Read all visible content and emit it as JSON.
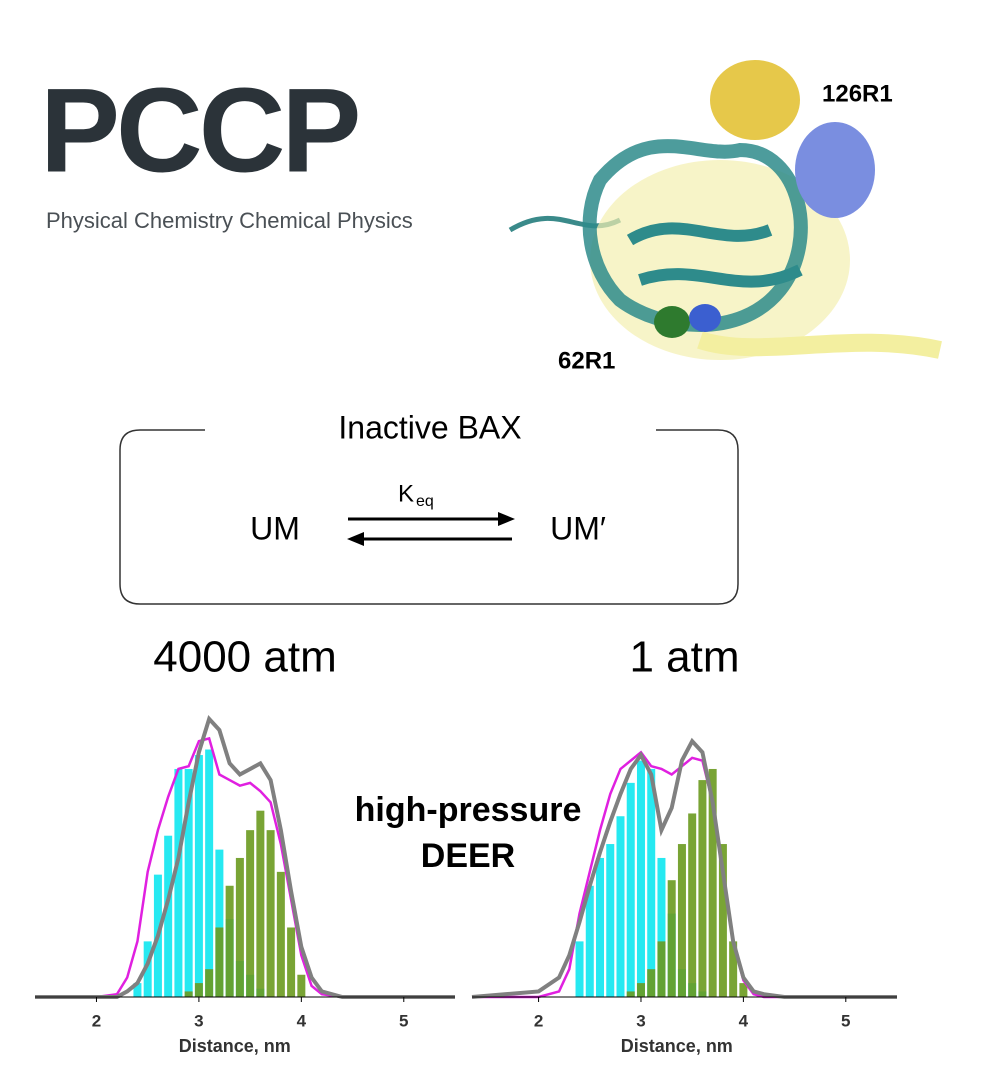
{
  "logo": "PCCP",
  "journal": "Physical Chemistry Chemical Physics",
  "labels": {
    "site_a": "126R1",
    "site_b": "62R1"
  },
  "scheme": {
    "title": "Inactive BAX",
    "k": "K",
    "k_sub": "eq",
    "left": "UM",
    "right": "UM′"
  },
  "center_text": [
    "high-pressure",
    "DEER"
  ],
  "chart_data": [
    {
      "type": "bar",
      "title": "4000 atm",
      "xlabel": "Distance, nm",
      "xlim": [
        1.4,
        5.5
      ],
      "xticks": [
        2,
        3,
        4,
        5
      ],
      "ylim": [
        0,
        1.05
      ],
      "x": [
        2.4,
        2.5,
        2.6,
        2.7,
        2.8,
        2.9,
        3.0,
        3.1,
        3.2,
        3.3,
        3.4,
        3.5,
        3.6,
        3.7,
        3.8,
        3.9,
        4.0
      ],
      "series": [
        {
          "color": "#00e5ee",
          "values": [
            0.05,
            0.2,
            0.44,
            0.58,
            0.82,
            0.82,
            0.87,
            0.89,
            0.53,
            0.28,
            0.13,
            0.08,
            0.03,
            0,
            0,
            0,
            0
          ]
        },
        {
          "color": "#6a9a1f",
          "values": [
            0,
            0,
            0,
            0,
            0,
            0.02,
            0.05,
            0.1,
            0.25,
            0.4,
            0.5,
            0.6,
            0.67,
            0.6,
            0.45,
            0.25,
            0.08
          ]
        }
      ],
      "lines": {
        "x": [
          1.4,
          2.0,
          2.2,
          2.3,
          2.4,
          2.5,
          2.6,
          2.7,
          2.8,
          2.9,
          3.0,
          3.1,
          3.2,
          3.3,
          3.4,
          3.5,
          3.6,
          3.7,
          3.8,
          3.9,
          4.0,
          4.1,
          4.2,
          4.4,
          5.5
        ],
        "series": [
          {
            "color": "#e020e0",
            "values": [
              0,
              0,
              0.01,
              0.07,
              0.2,
              0.45,
              0.6,
              0.72,
              0.82,
              0.83,
              0.92,
              0.93,
              0.8,
              0.78,
              0.76,
              0.77,
              0.74,
              0.7,
              0.55,
              0.35,
              0.15,
              0.04,
              0.01,
              0,
              0
            ]
          },
          {
            "color": "#808080",
            "values": [
              0,
              0,
              0,
              0.02,
              0.05,
              0.12,
              0.22,
              0.35,
              0.5,
              0.7,
              0.88,
              1.0,
              0.96,
              0.84,
              0.8,
              0.82,
              0.84,
              0.78,
              0.6,
              0.38,
              0.18,
              0.07,
              0.02,
              0,
              0
            ]
          }
        ]
      }
    },
    {
      "type": "bar",
      "title": "1 atm",
      "xlabel": "Distance, nm",
      "xlim": [
        1.35,
        5.5
      ],
      "xticks": [
        2,
        3,
        4,
        5
      ],
      "ylim": [
        0,
        1.05
      ],
      "x": [
        2.4,
        2.5,
        2.6,
        2.7,
        2.8,
        2.9,
        3.0,
        3.1,
        3.2,
        3.3,
        3.4,
        3.5,
        3.6,
        3.7,
        3.8,
        3.9,
        4.0
      ],
      "series": [
        {
          "color": "#00e5ee",
          "values": [
            0.2,
            0.4,
            0.5,
            0.55,
            0.65,
            0.77,
            0.85,
            0.82,
            0.5,
            0.3,
            0.1,
            0.05,
            0.02,
            0,
            0,
            0,
            0
          ]
        },
        {
          "color": "#6a9a1f",
          "values": [
            0,
            0,
            0,
            0,
            0,
            0.02,
            0.05,
            0.1,
            0.2,
            0.42,
            0.55,
            0.66,
            0.78,
            0.82,
            0.55,
            0.2,
            0.05
          ]
        }
      ],
      "lines": {
        "x": [
          1.35,
          2.0,
          2.2,
          2.3,
          2.4,
          2.5,
          2.6,
          2.7,
          2.8,
          2.9,
          3.0,
          3.1,
          3.2,
          3.3,
          3.4,
          3.5,
          3.6,
          3.7,
          3.8,
          3.9,
          4.0,
          4.1,
          4.2,
          4.4,
          5.5
        ],
        "series": [
          {
            "color": "#e020e0",
            "values": [
              0,
              0,
              0.02,
              0.1,
              0.3,
              0.45,
              0.6,
              0.73,
              0.82,
              0.85,
              0.88,
              0.83,
              0.82,
              0.8,
              0.83,
              0.86,
              0.85,
              0.7,
              0.45,
              0.2,
              0.06,
              0.01,
              0,
              0,
              0
            ]
          },
          {
            "color": "#808080",
            "values": [
              0,
              0.02,
              0.07,
              0.15,
              0.27,
              0.4,
              0.52,
              0.63,
              0.73,
              0.82,
              0.87,
              0.8,
              0.6,
              0.68,
              0.85,
              0.92,
              0.88,
              0.7,
              0.45,
              0.2,
              0.07,
              0.02,
              0.01,
              0,
              0
            ]
          }
        ]
      }
    }
  ]
}
